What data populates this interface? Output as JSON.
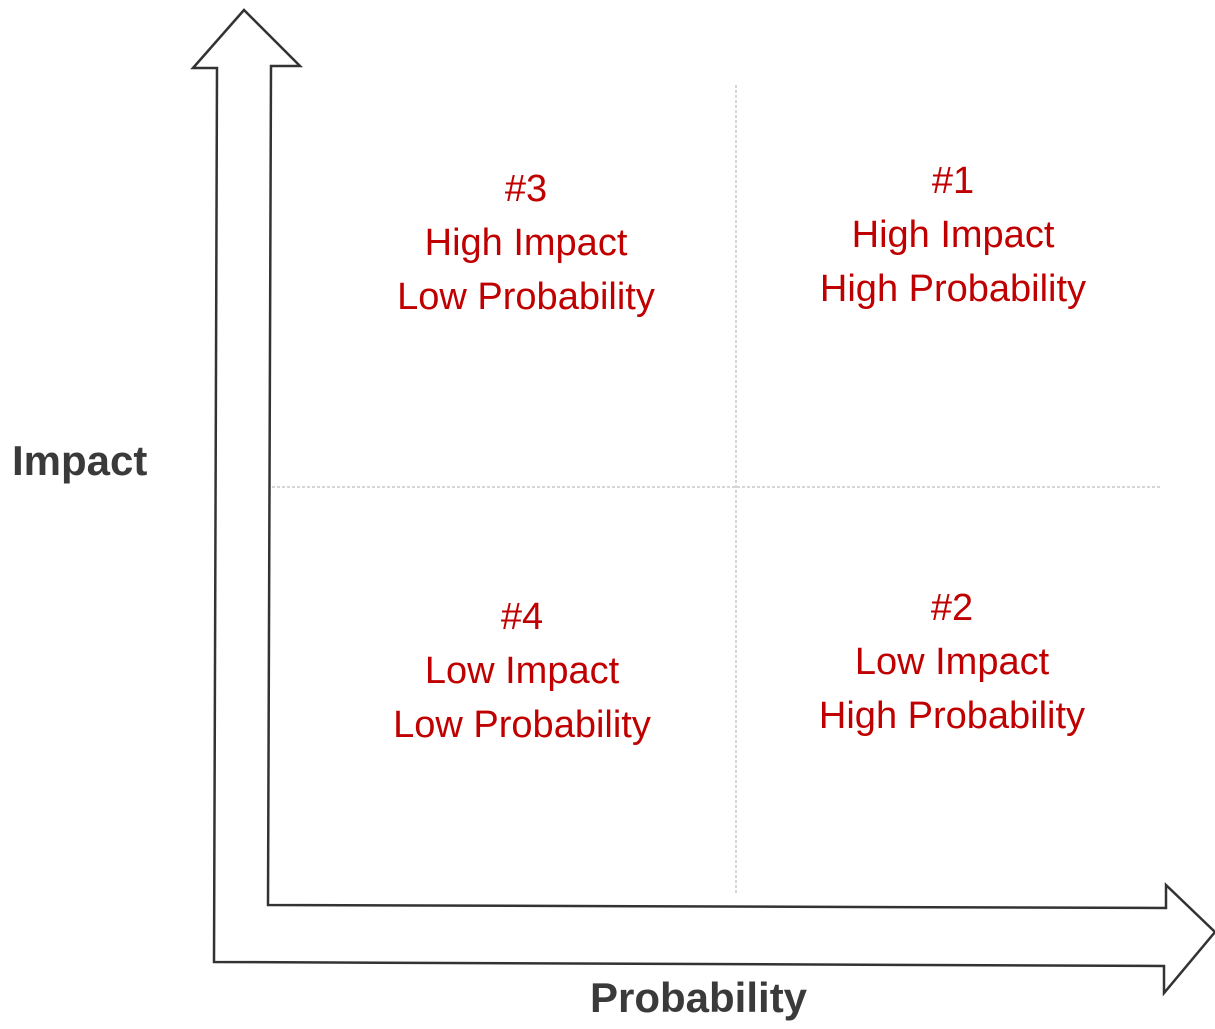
{
  "axes": {
    "y_label": "Impact",
    "x_label": "Probability"
  },
  "quadrants": {
    "q1": {
      "number": "#1",
      "impact": "High Impact",
      "probability": "High Probability"
    },
    "q2": {
      "number": "#2",
      "impact": "Low Impact",
      "probability": "High Probability"
    },
    "q3": {
      "number": "#3",
      "impact": "High Impact",
      "probability": "Low Probability"
    },
    "q4": {
      "number": "#4",
      "impact": "Low Impact",
      "probability": "Low Probability"
    }
  },
  "colors": {
    "quadrant_text": "#c00000",
    "axis_label": "#3a3a3a",
    "arrow_stroke": "#333333",
    "divider": "#c8c8c8"
  }
}
